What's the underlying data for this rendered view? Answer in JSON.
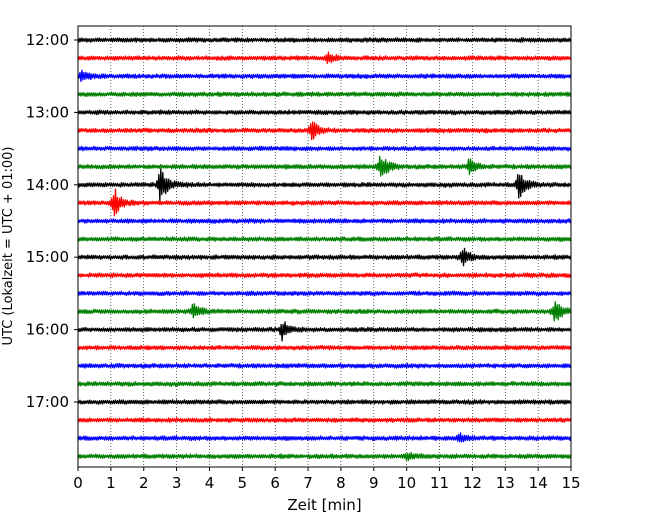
{
  "chart_data": {
    "type": "line",
    "xlabel": "Zeit  [min]",
    "ylabel": "UTC (Lokalzeit = UTC + 01:00)",
    "xlim": [
      0,
      15
    ],
    "x_ticks": [
      "0",
      "1",
      "2",
      "3",
      "4",
      "5",
      "6",
      "7",
      "8",
      "9",
      "10",
      "11",
      "12",
      "13",
      "14",
      "15"
    ],
    "y_ticks": [
      "12:00",
      "13:00",
      "14:00",
      "15:00",
      "16:00",
      "17:00"
    ],
    "row_interval_min": 15,
    "grid": "x-dotted",
    "colors": [
      "#000000",
      "#ff0000",
      "#0000ff",
      "#008000"
    ],
    "rows": [
      {
        "time": "12:00",
        "color": "#000000",
        "events": []
      },
      {
        "time": "12:15",
        "color": "#ff0000",
        "events": [
          {
            "t": 7.6,
            "amp": 0.3
          }
        ]
      },
      {
        "time": "12:30",
        "color": "#0000ff",
        "events": [
          {
            "t": 0.1,
            "amp": 0.35
          }
        ]
      },
      {
        "time": "12:45",
        "color": "#008000",
        "events": []
      },
      {
        "time": "13:00",
        "color": "#000000",
        "events": []
      },
      {
        "time": "13:15",
        "color": "#ff0000",
        "events": [
          {
            "t": 7.1,
            "amp": 0.6
          }
        ]
      },
      {
        "time": "13:30",
        "color": "#0000ff",
        "events": []
      },
      {
        "time": "13:45",
        "color": "#008000",
        "events": [
          {
            "t": 9.2,
            "amp": 0.75
          },
          {
            "t": 11.9,
            "amp": 0.5
          }
        ]
      },
      {
        "time": "14:00",
        "color": "#000000",
        "events": [
          {
            "t": 2.5,
            "amp": 1.1
          },
          {
            "t": 13.4,
            "amp": 0.85
          }
        ]
      },
      {
        "time": "14:15",
        "color": "#ff0000",
        "events": [
          {
            "t": 1.1,
            "amp": 0.8
          }
        ]
      },
      {
        "time": "14:30",
        "color": "#0000ff",
        "events": []
      },
      {
        "time": "14:45",
        "color": "#008000",
        "events": []
      },
      {
        "time": "15:00",
        "color": "#000000",
        "events": [
          {
            "t": 11.7,
            "amp": 0.55
          }
        ]
      },
      {
        "time": "15:15",
        "color": "#ff0000",
        "events": []
      },
      {
        "time": "15:30",
        "color": "#0000ff",
        "events": []
      },
      {
        "time": "15:45",
        "color": "#008000",
        "events": [
          {
            "t": 3.5,
            "amp": 0.45
          },
          {
            "t": 14.5,
            "amp": 0.75
          }
        ]
      },
      {
        "time": "16:00",
        "color": "#000000",
        "events": [
          {
            "t": 6.2,
            "amp": 0.55
          }
        ]
      },
      {
        "time": "16:15",
        "color": "#ff0000",
        "events": []
      },
      {
        "time": "16:30",
        "color": "#0000ff",
        "events": []
      },
      {
        "time": "16:45",
        "color": "#008000",
        "events": []
      },
      {
        "time": "17:00",
        "color": "#000000",
        "events": []
      },
      {
        "time": "17:15",
        "color": "#ff0000",
        "events": []
      },
      {
        "time": "17:30",
        "color": "#0000ff",
        "events": [
          {
            "t": 11.6,
            "amp": 0.25
          }
        ]
      },
      {
        "time": "17:45",
        "color": "#008000",
        "events": [
          {
            "t": 10.0,
            "amp": 0.25
          }
        ]
      }
    ]
  }
}
